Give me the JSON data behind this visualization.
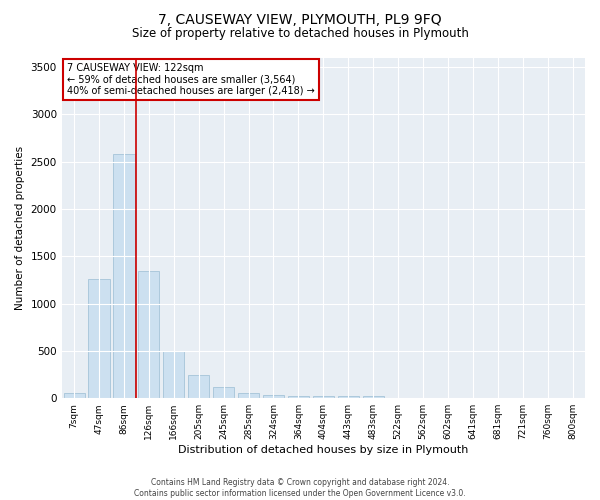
{
  "title": "7, CAUSEWAY VIEW, PLYMOUTH, PL9 9FQ",
  "subtitle": "Size of property relative to detached houses in Plymouth",
  "xlabel": "Distribution of detached houses by size in Plymouth",
  "ylabel": "Number of detached properties",
  "footer_line1": "Contains HM Land Registry data © Crown copyright and database right 2024.",
  "footer_line2": "Contains public sector information licensed under the Open Government Licence v3.0.",
  "categories": [
    "7sqm",
    "47sqm",
    "86sqm",
    "126sqm",
    "166sqm",
    "205sqm",
    "245sqm",
    "285sqm",
    "324sqm",
    "364sqm",
    "404sqm",
    "443sqm",
    "483sqm",
    "522sqm",
    "562sqm",
    "602sqm",
    "641sqm",
    "681sqm",
    "721sqm",
    "760sqm",
    "800sqm"
  ],
  "values": [
    55,
    1260,
    2580,
    1340,
    500,
    240,
    115,
    50,
    30,
    20,
    20,
    20,
    20,
    0,
    0,
    0,
    0,
    0,
    0,
    0,
    0
  ],
  "bar_color": "#cce0f0",
  "bar_edge_color": "#9bbdd4",
  "property_line_color": "#cc0000",
  "ylim": [
    0,
    3600
  ],
  "yticks": [
    0,
    500,
    1000,
    1500,
    2000,
    2500,
    3000,
    3500
  ],
  "annotation_text": "7 CAUSEWAY VIEW: 122sqm\n← 59% of detached houses are smaller (3,564)\n40% of semi-detached houses are larger (2,418) →",
  "annotation_box_color": "#ffffff",
  "annotation_border_color": "#cc0000",
  "bg_color": "#ffffff",
  "plot_bg_color": "#e8eef4"
}
